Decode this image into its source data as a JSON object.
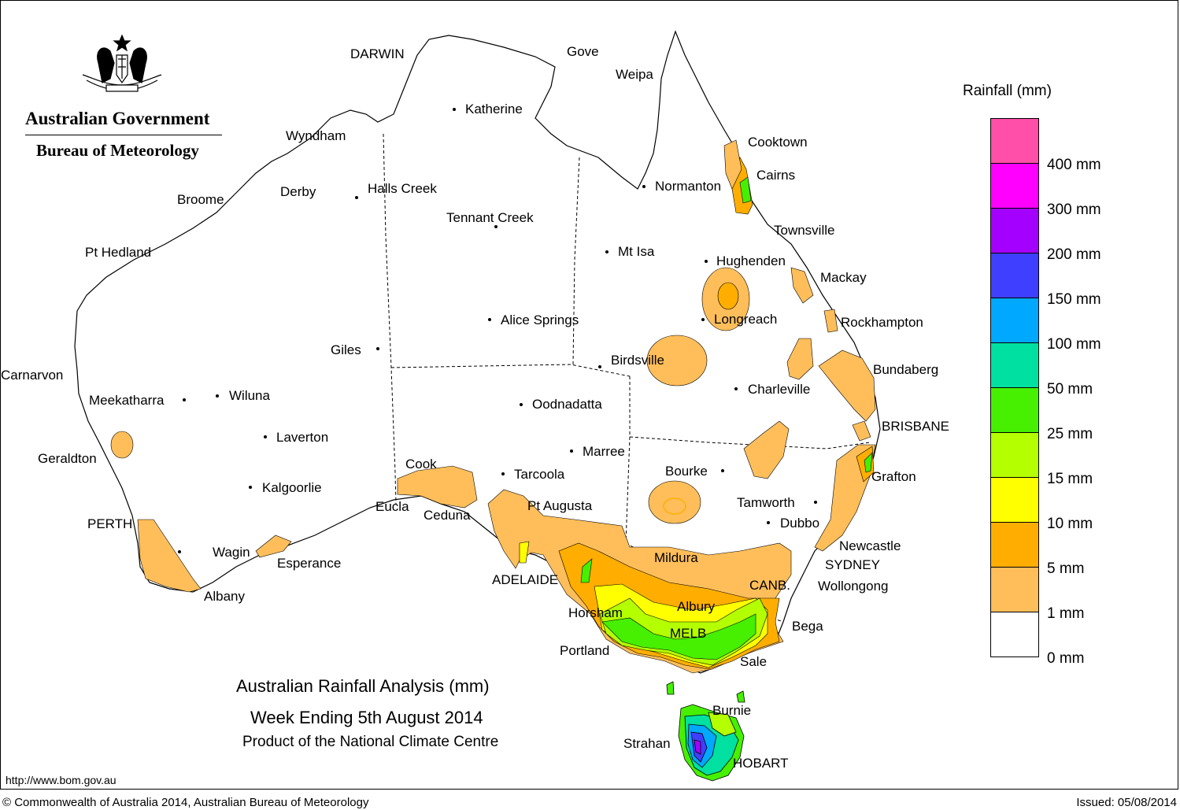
{
  "logo": {
    "crest": "commonwealth-coat-of-arms",
    "government": "Australian Government",
    "agency": "Bureau of Meteorology"
  },
  "title": {
    "line1": "Australian Rainfall Analysis (mm)",
    "line2": "Week Ending 5th August 2014",
    "line3": "Product of the National Climate Centre"
  },
  "legend": {
    "title": "Rainfall (mm)",
    "bands": [
      {
        "label": "400 mm",
        "color": "#ff4fa8"
      },
      {
        "label": "300 mm",
        "color": "#ff00ff"
      },
      {
        "label": "200 mm",
        "color": "#a400ff"
      },
      {
        "label": "150 mm",
        "color": "#3f3fff"
      },
      {
        "label": "100 mm",
        "color": "#00a8ff"
      },
      {
        "label": "50 mm",
        "color": "#00e0a0"
      },
      {
        "label": "25 mm",
        "color": "#46f000"
      },
      {
        "label": "15 mm",
        "color": "#b4ff00"
      },
      {
        "label": "10 mm",
        "color": "#ffff00"
      },
      {
        "label": "5 mm",
        "color": "#ffae00"
      },
      {
        "label": "1 mm",
        "color": "#ffbe5a"
      },
      {
        "label": "0 mm",
        "color": "#ffffff"
      }
    ]
  },
  "places": [
    {
      "name": "DARWIN"
    },
    {
      "name": "Gove"
    },
    {
      "name": "Weipa"
    },
    {
      "name": "Katherine"
    },
    {
      "name": "Wyndham"
    },
    {
      "name": "Cooktown"
    },
    {
      "name": "Cairns"
    },
    {
      "name": "Normanton"
    },
    {
      "name": "Broome"
    },
    {
      "name": "Derby"
    },
    {
      "name": "Halls Creek"
    },
    {
      "name": "Tennant Creek"
    },
    {
      "name": "Townsville"
    },
    {
      "name": "Pt Hedland"
    },
    {
      "name": "Mt Isa"
    },
    {
      "name": "Hughenden"
    },
    {
      "name": "Mackay"
    },
    {
      "name": "Alice Springs"
    },
    {
      "name": "Longreach"
    },
    {
      "name": "Rockhampton"
    },
    {
      "name": "Giles"
    },
    {
      "name": "Birdsville"
    },
    {
      "name": "Bundaberg"
    },
    {
      "name": "Carnarvon"
    },
    {
      "name": "Meekatharra"
    },
    {
      "name": "Wiluna"
    },
    {
      "name": "Charleville"
    },
    {
      "name": "Oodnadatta"
    },
    {
      "name": "BRISBANE"
    },
    {
      "name": "Laverton"
    },
    {
      "name": "Marree"
    },
    {
      "name": "Geraldton"
    },
    {
      "name": "Cook"
    },
    {
      "name": "Tarcoola"
    },
    {
      "name": "Bourke"
    },
    {
      "name": "Grafton"
    },
    {
      "name": "Kalgoorlie"
    },
    {
      "name": "Tamworth"
    },
    {
      "name": "Eucla"
    },
    {
      "name": "Pt Augusta"
    },
    {
      "name": "Ceduna"
    },
    {
      "name": "PERTH"
    },
    {
      "name": "Dubbo"
    },
    {
      "name": "Newcastle"
    },
    {
      "name": "Wagin"
    },
    {
      "name": "Mildura"
    },
    {
      "name": "SYDNEY"
    },
    {
      "name": "Esperance"
    },
    {
      "name": "ADELAIDE"
    },
    {
      "name": "CANB."
    },
    {
      "name": "Wollongong"
    },
    {
      "name": "Albany"
    },
    {
      "name": "Albury"
    },
    {
      "name": "Horsham"
    },
    {
      "name": "Bega"
    },
    {
      "name": "MELB"
    },
    {
      "name": "Portland"
    },
    {
      "name": "Sale"
    },
    {
      "name": "Burnie"
    },
    {
      "name": "Strahan"
    },
    {
      "name": "HOBART"
    }
  ],
  "url": "http://www.bom.gov.au",
  "copyright": "© Commonwealth of Australia 2014, Australian Bureau of Meteorology",
  "issued": "Issued: 05/08/2014"
}
